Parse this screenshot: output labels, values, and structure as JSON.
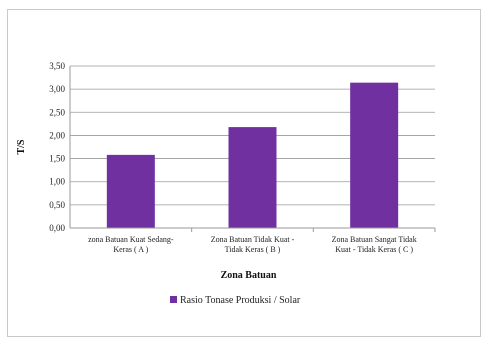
{
  "chart_data": {
    "type": "bar",
    "categories": [
      [
        "zona Batuan Kuat Sedang-",
        "Keras ( A )"
      ],
      [
        "Zona Batuan Tidak Kuat -",
        "Tidak Keras ( B )"
      ],
      [
        "Zona Batuan Sangat Tidak",
        "Kuat - Tidak Keras ( C )"
      ]
    ],
    "series": [
      {
        "name": "Rasio Tonase Produksi / Solar",
        "values": [
          1.58,
          2.18,
          3.14
        ],
        "color": "#7030a0"
      }
    ],
    "ylim": [
      0,
      3.5
    ],
    "yticks": [
      "0,00",
      "0,50",
      "1,00",
      "1,50",
      "2,00",
      "2,50",
      "3,00",
      "3,50"
    ],
    "xlabel": "Zona Batuan",
    "ylabel": "T/S",
    "grid": true,
    "legend": "bottom"
  }
}
